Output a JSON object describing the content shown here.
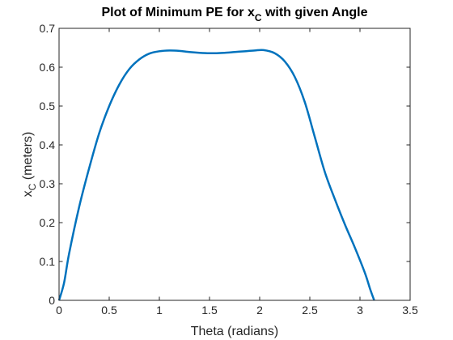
{
  "chart_data": {
    "type": "line",
    "title_main": "Plot of Minimum PE for x",
    "title_sub": "C",
    "title_tail": " with given Angle",
    "xlabel": "Theta (radians)",
    "ylabel_main": "x",
    "ylabel_sub": "C",
    "ylabel_tail": " (meters)",
    "xlim": [
      0,
      3.5
    ],
    "ylim": [
      0,
      0.7
    ],
    "xticks": [
      "0",
      "0.5",
      "1",
      "1.5",
      "2",
      "2.5",
      "3",
      "3.5"
    ],
    "yticks": [
      "0",
      "0.1",
      "0.2",
      "0.3",
      "0.4",
      "0.5",
      "0.6",
      "0.7"
    ],
    "grid": false,
    "series": [
      {
        "color": "#0072BD",
        "x": [
          0,
          0.05,
          0.1,
          0.2,
          0.3,
          0.4,
          0.5,
          0.6,
          0.7,
          0.8,
          0.9,
          1.0,
          1.1,
          1.2,
          1.3,
          1.4,
          1.5,
          1.571,
          1.65,
          1.75,
          1.85,
          1.95,
          2.04,
          2.15,
          2.25,
          2.35,
          2.45,
          2.55,
          2.65,
          2.75,
          2.85,
          2.95,
          3.05,
          3.1,
          3.1416
        ],
        "y": [
          0,
          0.045,
          0.12,
          0.24,
          0.34,
          0.43,
          0.5,
          0.555,
          0.595,
          0.62,
          0.635,
          0.641,
          0.643,
          0.642,
          0.639,
          0.637,
          0.636,
          0.636,
          0.637,
          0.639,
          0.641,
          0.643,
          0.644,
          0.636,
          0.615,
          0.575,
          0.51,
          0.42,
          0.33,
          0.26,
          0.195,
          0.135,
          0.07,
          0.03,
          0
        ]
      }
    ]
  }
}
